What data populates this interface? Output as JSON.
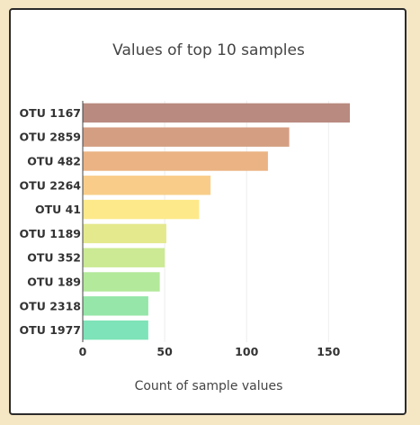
{
  "chart_data": {
    "type": "bar",
    "orientation": "horizontal",
    "title": "Values of top 10 samples",
    "xlabel": "Count of sample values",
    "ylabel": "",
    "categories": [
      "OTU 1167",
      "OTU 2859",
      "OTU 482",
      "OTU 2264",
      "OTU 41",
      "OTU 1189",
      "OTU 352",
      "OTU 189",
      "OTU 2318",
      "OTU 1977"
    ],
    "values": [
      163,
      126,
      113,
      78,
      71,
      51,
      50,
      47,
      40,
      40
    ],
    "colors": [
      "#b98a80",
      "#d49e82",
      "#ebb383",
      "#f9cd89",
      "#fde98a",
      "#e4e98d",
      "#cbea93",
      "#b3e99a",
      "#95e6a8",
      "#7ee3b8"
    ],
    "xlim": [
      0,
      180
    ],
    "xticks": [
      0,
      50,
      100,
      150
    ],
    "grid": "vertical"
  }
}
